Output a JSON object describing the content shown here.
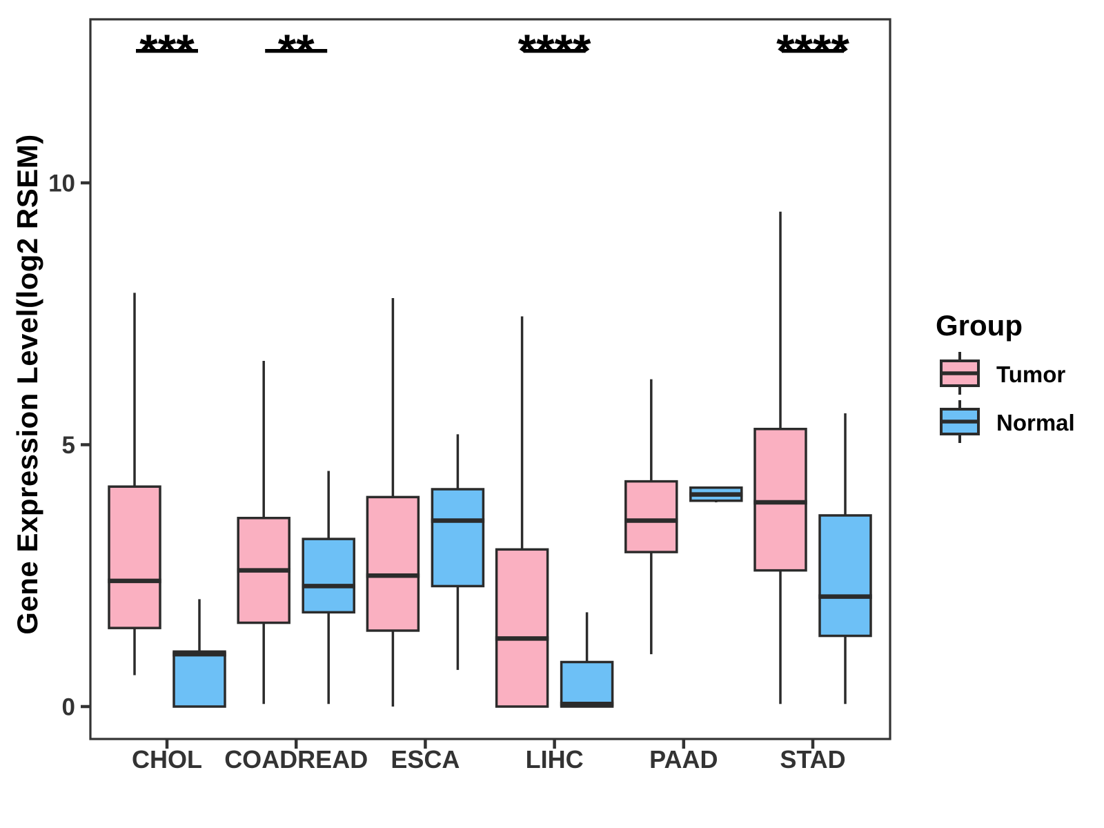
{
  "chart_data": {
    "type": "grouped_boxplot",
    "title": "",
    "xlabel": "",
    "ylabel": "Gene Expression Level(log2 RSEM)",
    "y_ticks": [
      0,
      5,
      10
    ],
    "ylim": [
      -0.62,
      13.1
    ],
    "grid": false,
    "categories": [
      "CHOL",
      "COADREAD",
      "ESCA",
      "LIHC",
      "PAAD",
      "STAD"
    ],
    "series": [
      {
        "name": "Tumor",
        "color": "#FAB0C1",
        "values": [
          {
            "min": 0.6,
            "q1": 1.5,
            "median": 2.4,
            "q3": 4.2,
            "max": 7.9
          },
          {
            "min": 0.05,
            "q1": 1.6,
            "median": 2.6,
            "q3": 3.6,
            "max": 6.6
          },
          {
            "min": 0.0,
            "q1": 1.45,
            "median": 2.5,
            "q3": 4.0,
            "max": 7.8
          },
          {
            "min": 0.0,
            "q1": 0.0,
            "median": 1.3,
            "q3": 3.0,
            "max": 7.45
          },
          {
            "min": 1.0,
            "q1": 2.95,
            "median": 3.55,
            "q3": 4.3,
            "max": 6.25
          },
          {
            "min": 0.05,
            "q1": 2.6,
            "median": 3.9,
            "q3": 5.3,
            "max": 9.45
          }
        ]
      },
      {
        "name": "Normal",
        "color": "#6DC0F6",
        "values": [
          {
            "min": 0.0,
            "q1": 0.0,
            "median": 1.0,
            "q3": 1.05,
            "max": 2.05
          },
          {
            "min": 0.05,
            "q1": 1.8,
            "median": 2.3,
            "q3": 3.2,
            "max": 4.5
          },
          {
            "min": 0.7,
            "q1": 2.3,
            "median": 3.55,
            "q3": 4.15,
            "max": 5.2
          },
          {
            "min": 0.0,
            "q1": 0.0,
            "median": 0.05,
            "q3": 0.85,
            "max": 1.8
          },
          {
            "min": 3.9,
            "q1": 3.93,
            "median": 4.05,
            "q3": 4.18,
            "max": 4.2
          },
          {
            "min": 0.05,
            "q1": 1.35,
            "median": 2.1,
            "q3": 3.65,
            "max": 5.6
          }
        ]
      }
    ],
    "significance": [
      {
        "category": "CHOL",
        "label": "***"
      },
      {
        "category": "COADREAD",
        "label": "**"
      },
      {
        "category": "LIHC",
        "label": "****"
      },
      {
        "category": "STAD",
        "label": "****"
      }
    ],
    "legend": {
      "title": "Group",
      "position": "right",
      "entries": [
        {
          "label": "Tumor",
          "color": "#FAB0C1"
        },
        {
          "label": "Normal",
          "color": "#6DC0F6"
        }
      ]
    },
    "colors": {
      "box_border": "#2B2B2B",
      "panel_border": "#333333",
      "axis_text": "#333333",
      "significance": "#000000"
    }
  }
}
